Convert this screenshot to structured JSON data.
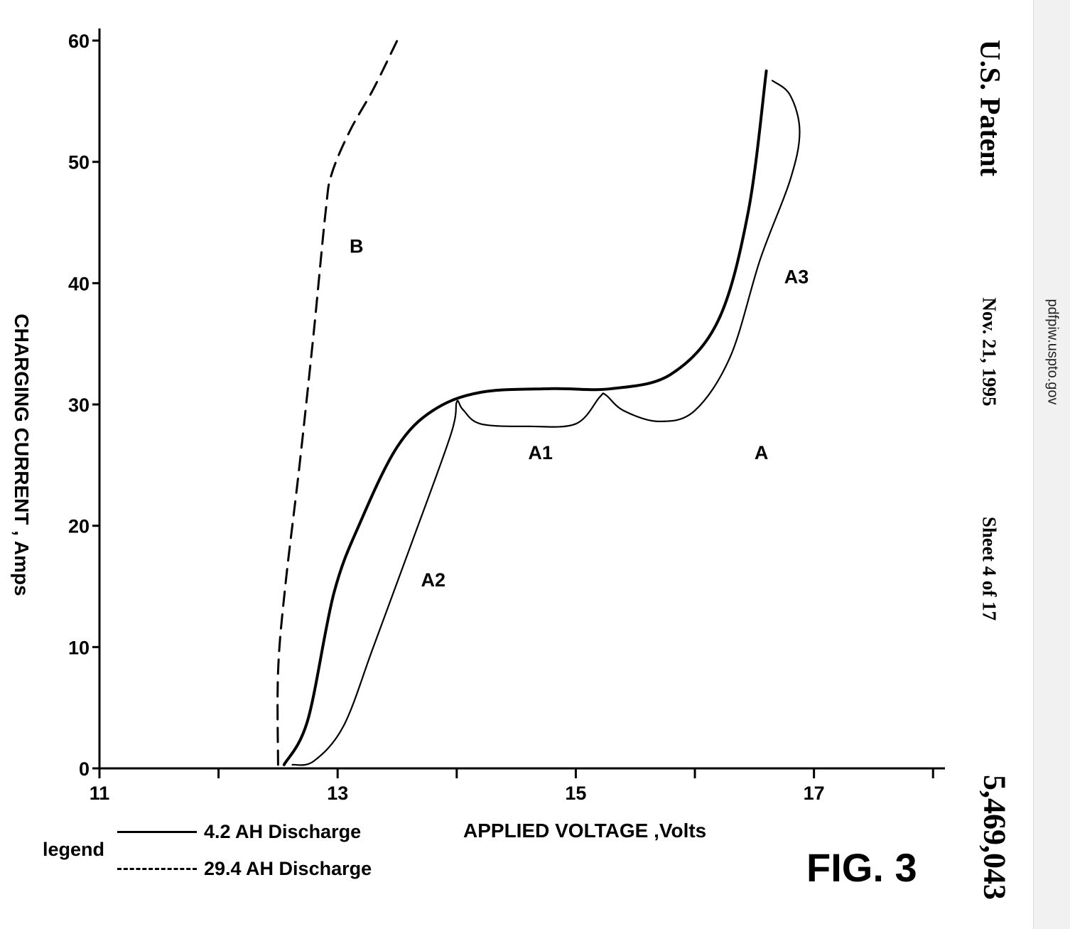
{
  "chart_data": {
    "type": "line",
    "title": "",
    "xlabel": "APPLIED VOLTAGE ,Volts",
    "ylabel": "CHARGING CURRENT , Amps",
    "xlim": [
      11,
      18.1
    ],
    "ylim": [
      0,
      61
    ],
    "x_ticks": [
      11,
      13,
      15,
      17
    ],
    "x_tick_labels": [
      "11",
      "13",
      "15",
      "17"
    ],
    "x_minor_ticks": [
      12,
      14,
      16,
      18
    ],
    "y_ticks": [
      0,
      10,
      20,
      30,
      40,
      50,
      60
    ],
    "y_tick_labels": [
      "0",
      "10",
      "20",
      "30",
      "40",
      "50",
      "60"
    ],
    "grid": false,
    "series": [
      {
        "name": "4.2 AH Discharge",
        "style": "solid",
        "points": [
          [
            12.55,
            0.3
          ],
          [
            12.75,
            4
          ],
          [
            12.97,
            14.5
          ],
          [
            13.2,
            20.5
          ],
          [
            13.5,
            26.5
          ],
          [
            13.8,
            29.5
          ],
          [
            14.2,
            31
          ],
          [
            14.8,
            31.3
          ],
          [
            15.3,
            31.3
          ],
          [
            15.8,
            32.5
          ],
          [
            16.2,
            37
          ],
          [
            16.45,
            46
          ],
          [
            16.6,
            57.5
          ]
        ]
      },
      {
        "name": "4.2 AH Discharge",
        "style": "solid",
        "points": [
          [
            12.62,
            0.3
          ],
          [
            12.8,
            0.6
          ],
          [
            13.05,
            3.5
          ],
          [
            13.3,
            10
          ],
          [
            13.6,
            18
          ],
          [
            13.95,
            27.5
          ],
          [
            14.0,
            30.2
          ],
          [
            14.05,
            29.6
          ],
          [
            14.2,
            28.4
          ],
          [
            14.6,
            28.2
          ],
          [
            15.0,
            28.4
          ],
          [
            15.2,
            30.6
          ],
          [
            15.25,
            30.8
          ],
          [
            15.4,
            29.5
          ],
          [
            15.7,
            28.6
          ],
          [
            16.0,
            29.5
          ],
          [
            16.3,
            34
          ],
          [
            16.55,
            42
          ],
          [
            16.8,
            48.5
          ],
          [
            16.88,
            52.5
          ],
          [
            16.8,
            55.5
          ],
          [
            16.65,
            56.7
          ]
        ]
      },
      {
        "name": "29.4 AH Discharge",
        "style": "dashed",
        "points": [
          [
            12.5,
            0.3
          ],
          [
            12.5,
            8
          ],
          [
            12.56,
            15
          ],
          [
            12.68,
            25
          ],
          [
            12.8,
            36
          ],
          [
            12.9,
            46
          ],
          [
            12.95,
            49
          ],
          [
            13.1,
            52.5
          ],
          [
            13.3,
            56
          ],
          [
            13.5,
            60
          ]
        ]
      }
    ],
    "legend": {
      "title": "legend",
      "placement": "bottom-left",
      "entries": [
        {
          "label": "4.2 AH Discharge",
          "style": "solid"
        },
        {
          "label": "29.4 AH Discharge",
          "style": "dashed"
        }
      ]
    },
    "annotations": [
      {
        "text": "A",
        "x": 16.5,
        "y": 25.5
      },
      {
        "text": "A1",
        "x": 14.6,
        "y": 25.5
      },
      {
        "text": "A2",
        "x": 13.7,
        "y": 15
      },
      {
        "text": "A3",
        "x": 16.75,
        "y": 40
      },
      {
        "text": "B",
        "x": 13.1,
        "y": 42.5
      }
    ]
  },
  "figure_label": "FIG. 3",
  "header": {
    "patent": "U.S. Patent",
    "date": "Nov. 21, 1995",
    "sheet": "Sheet 4 of 17",
    "number": "5,469,043"
  },
  "sidebar": {
    "url": "pdfpiw.uspto.gov"
  }
}
